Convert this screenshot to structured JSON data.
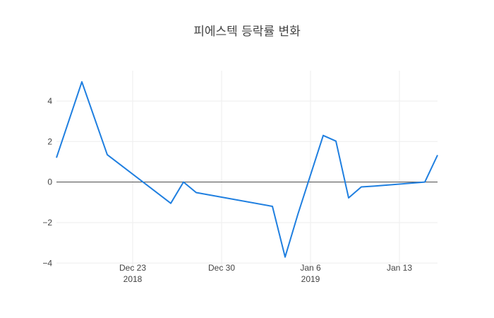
{
  "chart_data": {
    "type": "line",
    "title": "피에스텍 등락률 변화",
    "xlabel": "",
    "ylabel": "",
    "x": [
      "2018-12-17",
      "2018-12-19",
      "2018-12-21",
      "2018-12-26",
      "2018-12-27",
      "2018-12-28",
      "2019-01-03",
      "2019-01-04",
      "2019-01-05",
      "2019-01-07",
      "2019-01-08",
      "2019-01-09",
      "2019-01-10",
      "2019-01-11",
      "2019-01-15",
      "2019-01-16"
    ],
    "series": [
      {
        "color": "#1f7fe0",
        "values": [
          1.2,
          4.95,
          1.35,
          -1.05,
          0.0,
          -0.52,
          -1.2,
          -3.7,
          -1.6,
          2.3,
          2.02,
          -0.78,
          -0.24,
          -0.2,
          0.0,
          1.33
        ]
      }
    ],
    "xlim": [
      "2018-12-17",
      "2019-01-16"
    ],
    "ylim": [
      -4.2,
      5.5
    ],
    "yticks": [
      4,
      2,
      0,
      -2,
      -4
    ],
    "ytick_labels": [
      "4",
      "2",
      "0",
      "−2",
      "−4"
    ],
    "xticks": [
      {
        "date": "2018-12-23",
        "label": "Dec 23",
        "year": "2018"
      },
      {
        "date": "2018-12-30",
        "label": "Dec 30",
        "year": ""
      },
      {
        "date": "2019-01-06",
        "label": "Jan 6",
        "year": "2019"
      },
      {
        "date": "2019-01-13",
        "label": "Jan 13",
        "year": ""
      }
    ],
    "grid": true
  }
}
